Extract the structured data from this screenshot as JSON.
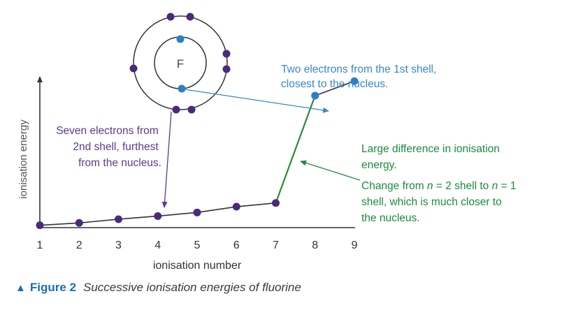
{
  "chart_data": {
    "type": "line",
    "xlabel": "ionisation number",
    "ylabel": "ionisation energy",
    "x": [
      1,
      2,
      3,
      4,
      5,
      6,
      7,
      8,
      9
    ],
    "y": [
      1.7,
      3.4,
      6.1,
      8.4,
      11.0,
      15.2,
      17.9,
      95.9,
      106.4
    ],
    "xlim": [
      1,
      9
    ],
    "ylim": [
      0,
      140
    ],
    "grid": false,
    "atom": {
      "symbol": "F",
      "inner_shell_electrons": 2,
      "outer_shell_electrons": 7
    },
    "annotations": [
      {
        "text": [
          "Two electrons from the 1st shell,",
          "closest to the nucleus."
        ],
        "color": "#3a87c8"
      },
      {
        "text": [
          "Seven electrons from",
          "2nd shell, furthest",
          "from the nucleus."
        ],
        "color": "#5b3a8f"
      },
      {
        "text": [
          "Large difference in ionisation",
          "energy."
        ],
        "color": "#1e8a3c"
      },
      {
        "text": [
          "Change from ",
          "n",
          " = 2 shell to ",
          "n",
          " = 1",
          "shell, which is much closer to",
          "the nucleus."
        ],
        "color": "#1e8a3c"
      }
    ],
    "colors": {
      "axis": "#333333",
      "line": "#333333",
      "jump_line": "#2e8b3a",
      "outer_point": "#4a2a7a",
      "inner_point": "#2a7fc8"
    }
  },
  "caption": {
    "label": "Figure 2",
    "text": "Successive ionisation energies of fluorine"
  }
}
